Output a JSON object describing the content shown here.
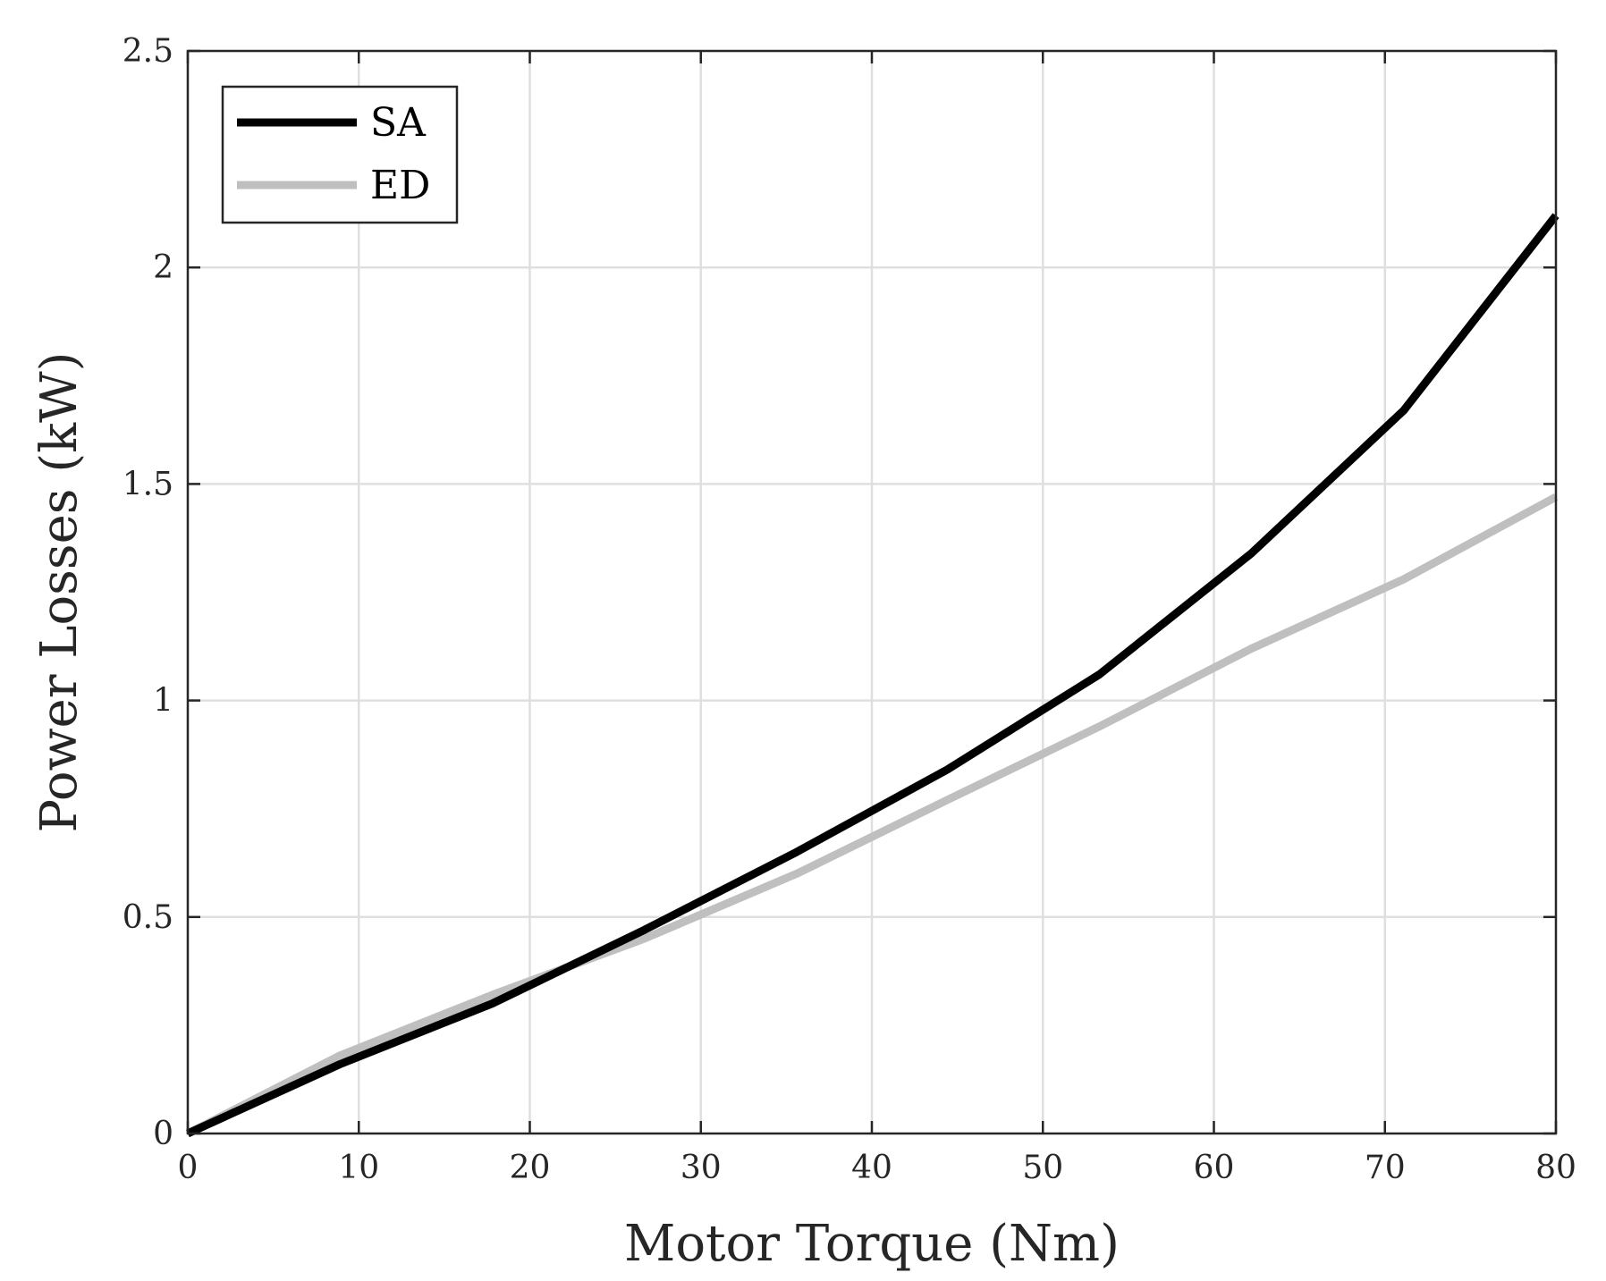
{
  "chart_data": {
    "type": "line",
    "title": "",
    "xlabel": "Motor Torque (Nm)",
    "ylabel": "Power Losses (kW)",
    "xlim": [
      0,
      80
    ],
    "ylim": [
      0,
      2.5
    ],
    "xticks": [
      "0",
      "10",
      "20",
      "30",
      "40",
      "50",
      "60",
      "70",
      "80"
    ],
    "yticks": [
      "0",
      "0.5",
      "1",
      "1.5",
      "2",
      "2.5"
    ],
    "grid": true,
    "legend": {
      "position": "top-left",
      "entries": [
        "SA",
        "ED"
      ]
    },
    "series": [
      {
        "name": "SA",
        "color": "#000000",
        "x": [
          0,
          8.9,
          17.8,
          26.7,
          35.6,
          44.4,
          53.3,
          62.2,
          71.1,
          80
        ],
        "y": [
          0,
          0.16,
          0.3,
          0.47,
          0.65,
          0.84,
          1.06,
          1.34,
          1.67,
          2.12
        ]
      },
      {
        "name": "ED",
        "color": "#bfbfbf",
        "x": [
          0,
          8.9,
          17.8,
          26.7,
          35.6,
          44.4,
          53.3,
          62.2,
          71.1,
          80
        ],
        "y": [
          0,
          0.18,
          0.32,
          0.45,
          0.6,
          0.77,
          0.94,
          1.12,
          1.28,
          1.47
        ]
      }
    ]
  }
}
